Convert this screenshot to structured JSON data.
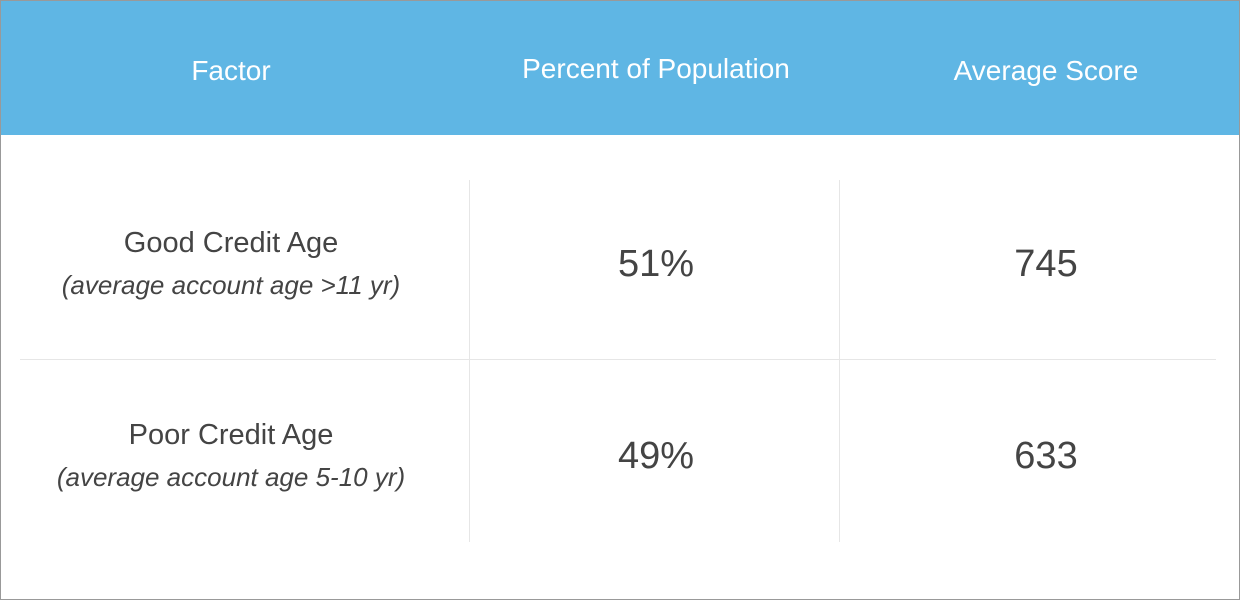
{
  "table": {
    "header": [
      "Factor",
      "Percent of Population",
      "Average Score"
    ],
    "rows": [
      [
        {
          "label": "Good Credit Age",
          "note": "(average account age >11 yr)"
        },
        "51%",
        "745"
      ],
      [
        {
          "label": "Poor Credit Age",
          "note": "(average account age 5-10 yr)"
        },
        "49%",
        "633"
      ]
    ]
  }
}
